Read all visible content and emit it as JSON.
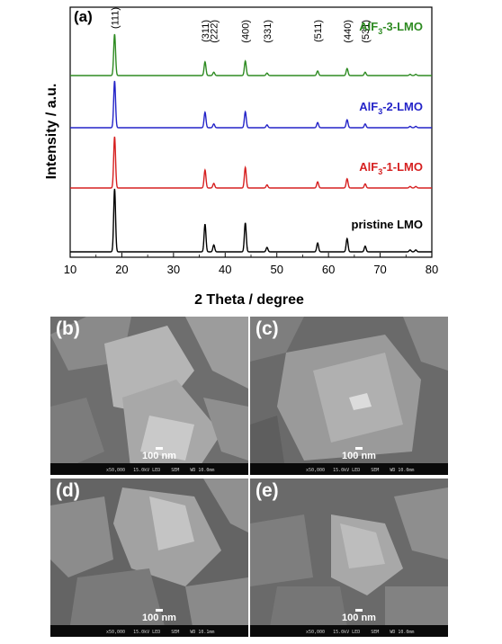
{
  "chart_data": {
    "type": "line",
    "panel_label": "(a)",
    "xlabel": "2 Theta / degree",
    "ylabel": "Intensity / a.u.",
    "xlim": [
      10,
      80
    ],
    "x_ticks": [
      10,
      20,
      30,
      40,
      50,
      60,
      70,
      80
    ],
    "y_ticks": "none",
    "grid": false,
    "legend": "labels placed above each trace, right side",
    "series": [
      {
        "name": "pristine LMO",
        "color": "#000000",
        "peaks": [
          [
            18.6,
            1.0
          ],
          [
            36.1,
            0.44
          ],
          [
            37.8,
            0.11
          ],
          [
            43.9,
            0.46
          ],
          [
            48.1,
            0.07
          ],
          [
            57.9,
            0.14
          ],
          [
            63.6,
            0.21
          ],
          [
            67.1,
            0.09
          ],
          [
            75.8,
            0.03
          ],
          [
            76.9,
            0.03
          ]
        ]
      },
      {
        "name": "AlF3-1-LMO",
        "color": "#d62020",
        "peaks": [
          [
            18.6,
            1.0
          ],
          [
            36.1,
            0.35
          ],
          [
            37.8,
            0.09
          ],
          [
            43.9,
            0.4
          ],
          [
            48.1,
            0.06
          ],
          [
            57.9,
            0.12
          ],
          [
            63.6,
            0.18
          ],
          [
            67.1,
            0.08
          ],
          [
            75.8,
            0.03
          ],
          [
            76.9,
            0.03
          ]
        ]
      },
      {
        "name": "AlF3-2-LMO",
        "color": "#2424c8",
        "peaks": [
          [
            18.6,
            1.0
          ],
          [
            36.1,
            0.33
          ],
          [
            37.8,
            0.08
          ],
          [
            43.9,
            0.34
          ],
          [
            48.1,
            0.06
          ],
          [
            57.9,
            0.11
          ],
          [
            63.6,
            0.17
          ],
          [
            67.1,
            0.08
          ],
          [
            75.8,
            0.03
          ],
          [
            76.9,
            0.03
          ]
        ]
      },
      {
        "name": "AlF3-3-LMO",
        "color": "#2e8b22",
        "peaks": [
          [
            18.6,
            1.0
          ],
          [
            36.1,
            0.33
          ],
          [
            37.8,
            0.08
          ],
          [
            43.9,
            0.35
          ],
          [
            48.1,
            0.06
          ],
          [
            57.9,
            0.11
          ],
          [
            63.6,
            0.17
          ],
          [
            67.1,
            0.08
          ],
          [
            75.8,
            0.03
          ],
          [
            76.9,
            0.03
          ]
        ]
      }
    ],
    "peak_labels": [
      {
        "x": 18.6,
        "text": "(111)"
      },
      {
        "x": 36.1,
        "text": "(311)"
      },
      {
        "x": 37.8,
        "text": "(222)"
      },
      {
        "x": 43.9,
        "text": "(400)"
      },
      {
        "x": 48.1,
        "text": "(331)"
      },
      {
        "x": 57.9,
        "text": "(511)"
      },
      {
        "x": 63.6,
        "text": "(440)"
      },
      {
        "x": 67.1,
        "text": "(531)"
      }
    ],
    "trace_labels": [
      {
        "prefix": "pristine LMO",
        "sub": "",
        "suffix": "",
        "color": "#000000"
      },
      {
        "prefix": "AlF",
        "sub": "3",
        "suffix": "-1-LMO",
        "color": "#d62020"
      },
      {
        "prefix": "AlF",
        "sub": "3",
        "suffix": "-2-LMO",
        "color": "#2424c8"
      },
      {
        "prefix": "AlF",
        "sub": "3",
        "suffix": "-3-LMO",
        "color": "#2e8b22"
      }
    ]
  },
  "sem_panels": [
    {
      "label": "(b)",
      "scale": "100 nm",
      "meta": "x50,000   15.0kV LED    SEM    WD 10.0mm"
    },
    {
      "label": "(c)",
      "scale": "100 nm",
      "meta": "x50,000   15.0kV LED    SEM    WD 10.0mm"
    },
    {
      "label": "(d)",
      "scale": "100 nm",
      "meta": "x50,000   15.0kV LED    SEM    WD 10.1mm"
    },
    {
      "label": "(e)",
      "scale": "100 nm",
      "meta": "x50,000   15.0kV LED    SEM    WD 10.0mm"
    }
  ]
}
